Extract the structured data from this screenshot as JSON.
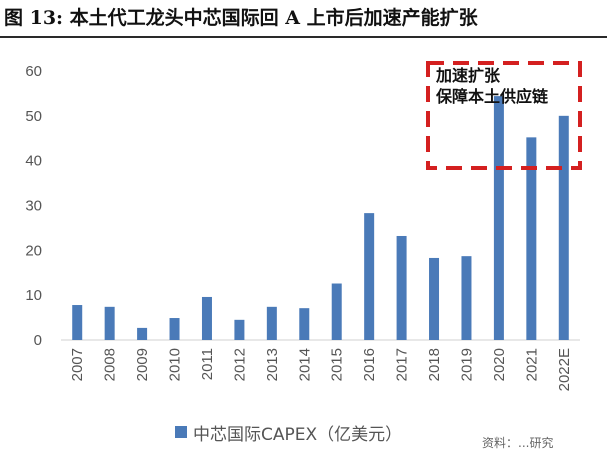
{
  "figure": {
    "title": "图 13:  本土代工龙头中芯国际回 A 上市后加速产能扩张",
    "source": "资料：...研究"
  },
  "chart_data": {
    "type": "bar",
    "categories": [
      "2007",
      "2008",
      "2009",
      "2010",
      "2011",
      "2012",
      "2013",
      "2014",
      "2015",
      "2016",
      "2017",
      "2018",
      "2019",
      "2020",
      "2021",
      "2022E"
    ],
    "series": [
      {
        "name": "中芯国际CAPEX（亿美元）",
        "values": [
          7.8,
          7.4,
          2.7,
          4.9,
          9.6,
          4.5,
          7.4,
          7.1,
          12.6,
          28.3,
          23.2,
          18.3,
          18.7,
          54.4,
          45.2,
          50.0
        ]
      }
    ],
    "ylim": [
      0,
      60
    ],
    "yticks": [
      0,
      10,
      20,
      30,
      40,
      50,
      60
    ],
    "title": "",
    "xlabel": "",
    "ylabel": "",
    "grid": false,
    "legend": "bottom-center",
    "bar_color": "#4a7ab8",
    "annotation": {
      "lines": [
        "加速扩张",
        "保障本土供应链"
      ],
      "box_color": "#d42020",
      "box_style": "dashed"
    }
  }
}
